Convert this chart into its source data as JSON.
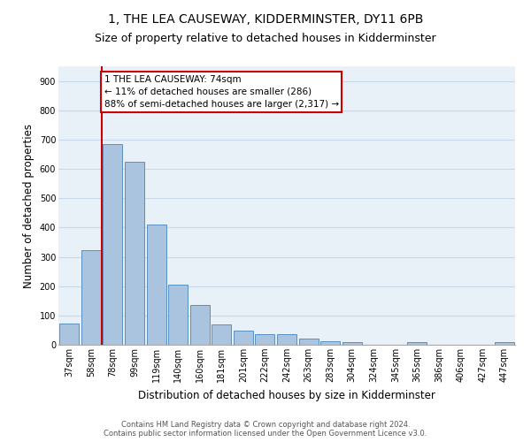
{
  "title": "1, THE LEA CAUSEWAY, KIDDERMINSTER, DY11 6PB",
  "subtitle": "Size of property relative to detached houses in Kidderminster",
  "xlabel": "Distribution of detached houses by size in Kidderminster",
  "ylabel": "Number of detached properties",
  "footer_line1": "Contains HM Land Registry data © Crown copyright and database right 2024.",
  "footer_line2": "Contains public sector information licensed under the Open Government Licence v3.0.",
  "categories": [
    "37sqm",
    "58sqm",
    "78sqm",
    "99sqm",
    "119sqm",
    "140sqm",
    "160sqm",
    "181sqm",
    "201sqm",
    "222sqm",
    "242sqm",
    "263sqm",
    "283sqm",
    "304sqm",
    "324sqm",
    "345sqm",
    "365sqm",
    "386sqm",
    "406sqm",
    "427sqm",
    "447sqm"
  ],
  "values": [
    72,
    322,
    685,
    623,
    410,
    205,
    137,
    70,
    48,
    35,
    35,
    22,
    12,
    8,
    0,
    0,
    10,
    0,
    0,
    0,
    10
  ],
  "bar_color": "#aac4e0",
  "bar_edge_color": "#5a8fc0",
  "vline_x_index": 1.5,
  "annotation_text": "1 THE LEA CAUSEWAY: 74sqm\n← 11% of detached houses are smaller (286)\n88% of semi-detached houses are larger (2,317) →",
  "annotation_box_color": "#ffffff",
  "annotation_box_edge": "#cc0000",
  "vline_color": "#cc0000",
  "grid_color": "#c8d8e8",
  "background_color": "#e8f0f8",
  "ylim": [
    0,
    950
  ],
  "yticks": [
    0,
    100,
    200,
    300,
    400,
    500,
    600,
    700,
    800,
    900
  ],
  "title_fontsize": 10,
  "subtitle_fontsize": 9,
  "xlabel_fontsize": 8.5,
  "ylabel_fontsize": 8.5,
  "tick_fontsize": 7,
  "ann_fontsize": 7.5,
  "footer_fontsize": 6
}
